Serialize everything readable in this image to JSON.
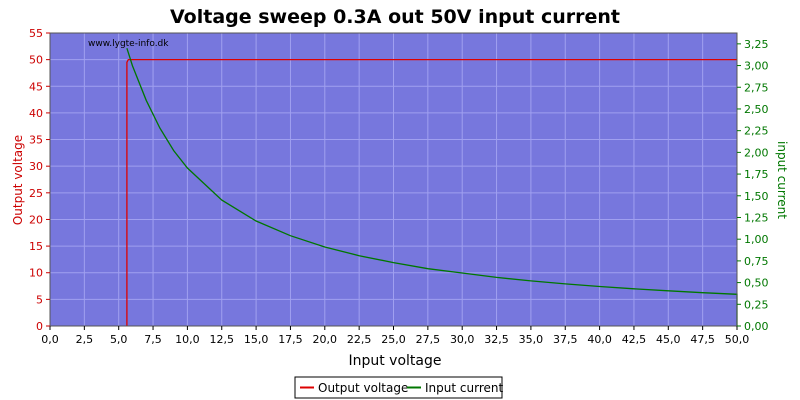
{
  "chart_data": {
    "type": "line",
    "title": "Voltage sweep 0.3A out 50V input current",
    "watermark": "www.lygte-info.dk",
    "xlabel": "Input voltage",
    "ylabel_left": "Output voltage",
    "ylabel_right": "input current",
    "xlim": [
      0,
      50
    ],
    "ylim_left": [
      0,
      55
    ],
    "ylim_right": [
      0,
      3.375
    ],
    "x_ticks": [
      "0,0",
      "2,5",
      "5,0",
      "7,5",
      "10,0",
      "12,5",
      "15,0",
      "17,5",
      "20,0",
      "22,5",
      "25,0",
      "27,5",
      "30,0",
      "32,5",
      "35,0",
      "37,5",
      "40,0",
      "42,5",
      "45,0",
      "47,5",
      "50,0"
    ],
    "y_left_ticks": [
      "0",
      "5",
      "10",
      "15",
      "20",
      "25",
      "30",
      "35",
      "40",
      "45",
      "50",
      "55"
    ],
    "y_right_ticks": [
      "0,00",
      "0,25",
      "0,50",
      "0,75",
      "1,00",
      "1,25",
      "1,50",
      "1,75",
      "2,00",
      "2,25",
      "2,50",
      "2,75",
      "3,00",
      "3,25"
    ],
    "grid": true,
    "legend_position": "bottom-center",
    "colors": {
      "plot_bg": "#7777dd",
      "grid": "#a0a0f0",
      "output_voltage": "#dd0000",
      "input_current": "#007700",
      "left_axis": "#cc0000",
      "right_axis": "#007700"
    },
    "series": [
      {
        "name": "Output voltage",
        "axis": "left",
        "color": "#dd0000",
        "x": [
          5.6,
          5.6,
          5.6,
          5.7,
          50.0
        ],
        "y": [
          0,
          1,
          49.5,
          50,
          50
        ]
      },
      {
        "name": "Input current",
        "axis": "right",
        "color": "#007700",
        "x": [
          5.6,
          6.0,
          7.0,
          8.0,
          9.0,
          10.0,
          12.5,
          15.0,
          17.5,
          20.0,
          22.5,
          25.0,
          27.5,
          30.0,
          32.5,
          35.0,
          37.5,
          40.0,
          42.5,
          45.0,
          47.5,
          50.0,
          50.0
        ],
        "y": [
          3.2,
          3.0,
          2.6,
          2.28,
          2.02,
          1.82,
          1.45,
          1.21,
          1.04,
          0.91,
          0.81,
          0.73,
          0.66,
          0.61,
          0.56,
          0.52,
          0.485,
          0.455,
          0.428,
          0.405,
          0.383,
          0.365,
          0.0
        ]
      }
    ]
  }
}
